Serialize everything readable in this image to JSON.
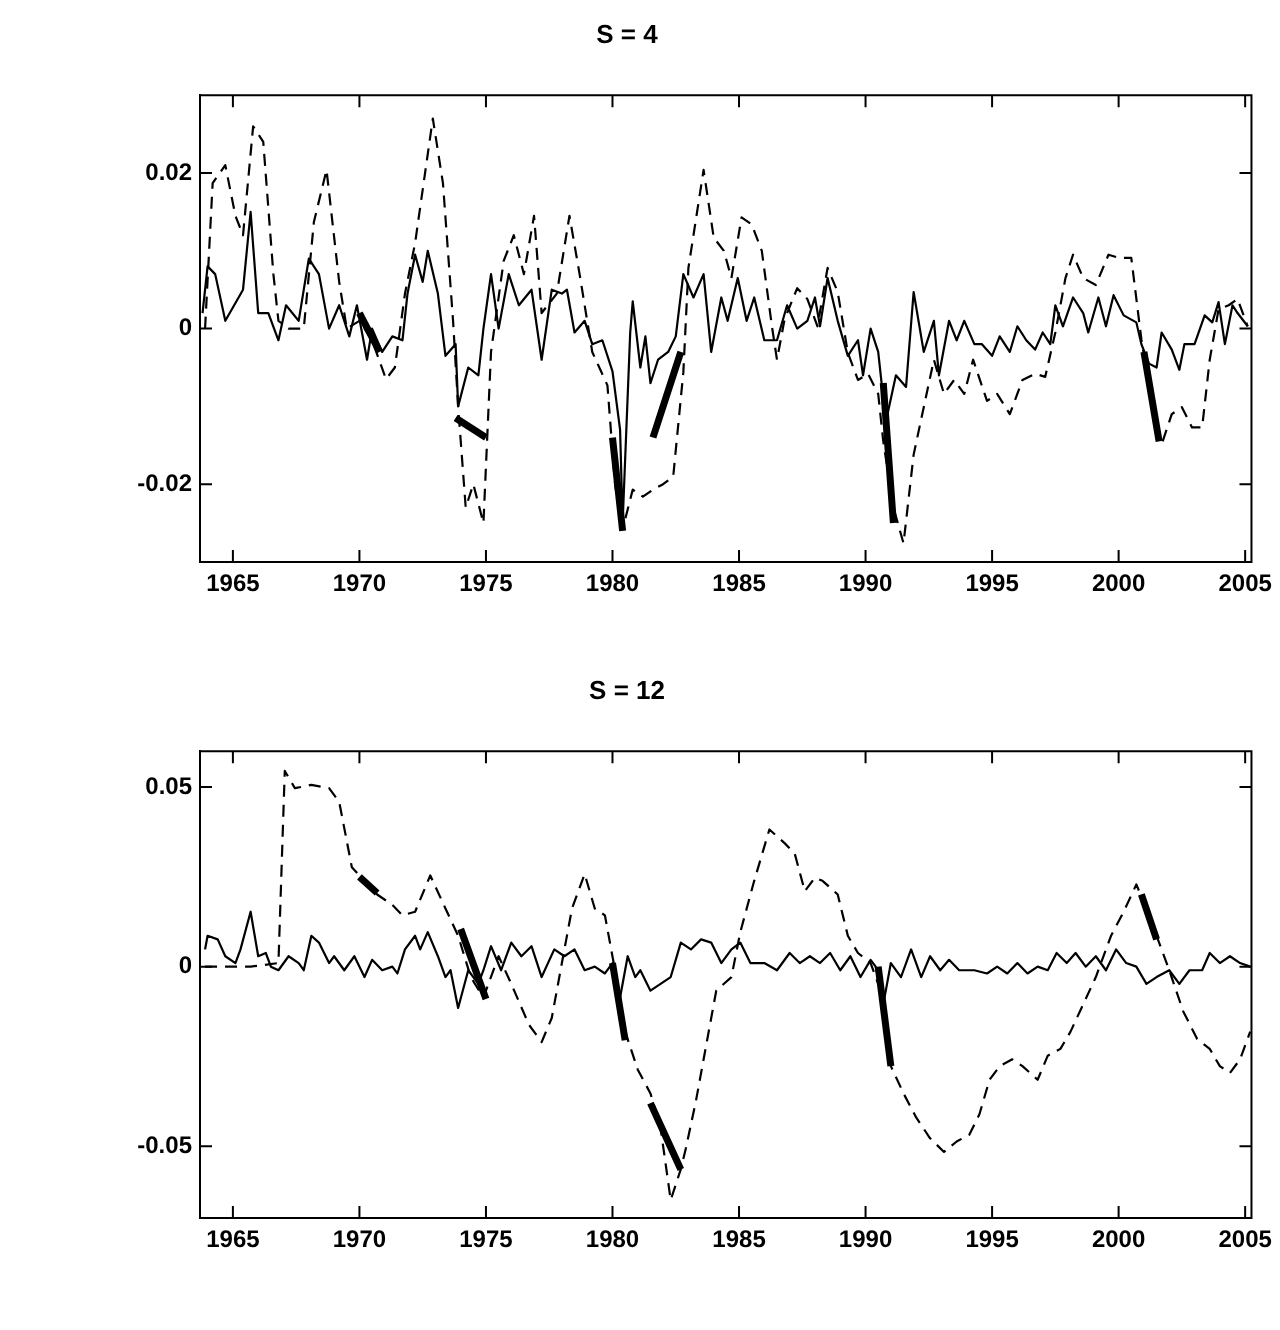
{
  "chart_data": [
    {
      "type": "line",
      "title": "S = 4",
      "xlim": [
        1963.7,
        2005.25
      ],
      "xticks": [
        1965,
        1970,
        1975,
        1980,
        1985,
        1990,
        1995,
        2000,
        2005
      ],
      "ylim": [
        -0.03,
        0.03
      ],
      "yticks": [
        -0.02,
        0,
        0.02
      ],
      "series": [
        {
          "color": "#000000",
          "line_style": "solid",
          "x": [
            1963.8,
            1964.0,
            1964.3,
            1964.7,
            1965.4,
            1965.7,
            1966.0,
            1966.4,
            1966.8,
            1967.1,
            1967.6,
            1968.0,
            1968.4,
            1968.8,
            1969.2,
            1969.6,
            1969.9,
            1970.3,
            1970.5,
            1970.9,
            1971.3,
            1971.7,
            1971.9,
            1972.2,
            1972.5,
            1972.7,
            1973.1,
            1973.4,
            1973.8,
            1973.9,
            1974.3,
            1974.7,
            1974.9,
            1975.2,
            1975.5,
            1975.9,
            1976.3,
            1976.8,
            1977.2,
            1977.6,
            1978.0,
            1978.2,
            1978.5,
            1978.9,
            1979.2,
            1979.6,
            1980.0,
            1980.3,
            1980.4,
            1980.7,
            1980.8,
            1981.1,
            1981.3,
            1981.5,
            1981.8,
            1982.2,
            1982.5,
            1982.8,
            1983.2,
            1983.6,
            1983.9,
            1984.3,
            1984.55,
            1984.95,
            1985.3,
            1985.6,
            1986.0,
            1986.5,
            1986.9,
            1987.3,
            1987.7,
            1988.0,
            1988.2,
            1988.5,
            1988.9,
            1989.3,
            1989.7,
            1989.9,
            1990.2,
            1990.5,
            1990.8,
            1991.2,
            1991.6,
            1991.9,
            1992.3,
            1992.7,
            1992.9,
            1993.3,
            1993.6,
            1993.9,
            1994.3,
            1994.6,
            1995.0,
            1995.3,
            1995.7,
            1996.0,
            1996.35,
            1996.7,
            1997.0,
            1997.3,
            1997.5,
            1997.8,
            1998.2,
            1998.6,
            1998.8,
            1999.2,
            1999.5,
            1999.8,
            2000.2,
            2000.7,
            2000.9,
            2001.2,
            2001.5,
            2001.7,
            2002.1,
            2002.4,
            2002.6,
            2003.0,
            2003.4,
            2003.7,
            2003.95,
            2004.2,
            2004.5,
            2004.7,
            2005.1
          ],
          "values": [
            0.002,
            0.008,
            0.007,
            0.001,
            0.005,
            0.015,
            0.002,
            0.002,
            -0.0015,
            0.003,
            0.001,
            0.009,
            0.007,
            0,
            0.003,
            -0.001,
            0.003,
            -0.004,
            0,
            -0.003,
            -0.001,
            -0.0015,
            0.0045,
            0.0095,
            0.006,
            0.01,
            0.0045,
            -0.0035,
            -0.002,
            -0.01,
            -0.005,
            -0.006,
            0,
            0.007,
            0,
            0.007,
            0.003,
            0.005,
            -0.004,
            0.005,
            0.0045,
            0.005,
            -0.0005,
            0.001,
            -0.002,
            -0.0015,
            -0.0055,
            -0.013,
            -0.025,
            -0.0005,
            0.0035,
            -0.005,
            -0.001,
            -0.007,
            -0.004,
            -0.003,
            -0.001,
            0.007,
            0.004,
            0.007,
            -0.003,
            0.004,
            0.001,
            0.0065,
            0.001,
            0.004,
            -0.0015,
            -0.0015,
            0.003,
            0,
            0.001,
            0.004,
            0.0003,
            0.0065,
            0.001,
            -0.0035,
            -0.0015,
            -0.006,
            0,
            -0.003,
            -0.012,
            -0.006,
            -0.0075,
            0.0047,
            -0.003,
            0.001,
            -0.006,
            0.001,
            -0.0015,
            0.001,
            -0.002,
            -0.002,
            -0.0035,
            -0.001,
            -0.003,
            0.0003,
            -0.0015,
            -0.0027,
            -0.0005,
            -0.002,
            0.003,
            0.0003,
            0.004,
            0.002,
            -0.0005,
            0.004,
            0.0003,
            0.0043,
            0.0017,
            0.0008,
            -0.002,
            -0.0045,
            -0.005,
            -0.0005,
            -0.0027,
            -0.0053,
            -0.002,
            -0.002,
            0.0017,
            0.0008,
            0.0034,
            -0.002,
            0.003,
            0.002,
            0.0003
          ]
        },
        {
          "color": "#000000",
          "line_style": "dashed",
          "x": [
            1963.9,
            1964.2,
            1964.7,
            1965.1,
            1965.4,
            1965.8,
            1966.2,
            1966.6,
            1966.8,
            1967.2,
            1967.8,
            1968.2,
            1968.7,
            1969.2,
            1969.5,
            1970.0,
            1970.5,
            1971.05,
            1971.4,
            1971.8,
            1972.2,
            1972.9,
            1973.3,
            1973.7,
            1973.9,
            1974.2,
            1974.5,
            1974.9,
            1975.2,
            1975.7,
            1976.1,
            1976.5,
            1976.9,
            1977.2,
            1977.8,
            1978.3,
            1978.7,
            1979.2,
            1979.8,
            1980.1,
            1980.4,
            1980.8,
            1981.2,
            1981.6,
            1982.0,
            1982.4,
            1982.8,
            1983.0,
            1983.6,
            1984.0,
            1984.4,
            1984.7,
            1985.1,
            1985.5,
            1985.9,
            1986.3,
            1986.5,
            1986.8,
            1987.3,
            1987.7,
            1988.1,
            1988.5,
            1988.9,
            1989.3,
            1989.7,
            1990.1,
            1990.5,
            1990.7,
            1991.1,
            1991.5,
            1991.9,
            1992.3,
            1992.7,
            1993.1,
            1993.5,
            1993.9,
            1994.25,
            1994.8,
            1995.2,
            1995.7,
            1996.2,
            1996.7,
            1997.1,
            1997.5,
            1997.9,
            1998.2,
            1998.6,
            1999.1,
            1999.6,
            2000.0,
            2000.5,
            2000.9,
            2001.3,
            2001.7,
            2002.1,
            2002.5,
            2002.9,
            2003.3,
            2003.6,
            2003.95,
            2004.35,
            2004.7,
            2005.1
          ],
          "values": [
            0,
            0.0187,
            0.021,
            0.0145,
            0.012,
            0.026,
            0.024,
            0.007,
            0.001,
            0,
            0,
            0.0137,
            0.0204,
            0.006,
            0,
            0.001,
            -0.0015,
            -0.0065,
            -0.005,
            0.0045,
            0.011,
            0.027,
            0.0187,
            0.001,
            -0.01,
            -0.023,
            -0.02,
            -0.025,
            -0.003,
            0.0087,
            0.012,
            0.007,
            0.0145,
            0.002,
            0.0045,
            0.0145,
            0.007,
            -0.003,
            -0.0073,
            -0.02,
            -0.0258,
            -0.0207,
            -0.0216,
            -0.0207,
            -0.02,
            -0.019,
            -0.0056,
            0.0078,
            0.0204,
            0.0117,
            0.01,
            0.0065,
            0.0143,
            0.0134,
            0.01,
            0.0003,
            -0.004,
            0.0012,
            0.0052,
            0.0038,
            0.0003,
            0.0078,
            0.0047,
            -0.0031,
            -0.0066,
            -0.0058,
            -0.0084,
            -0.0145,
            -0.023,
            -0.0276,
            -0.0162,
            -0.0101,
            -0.004,
            -0.0084,
            -0.0066,
            -0.0084,
            -0.004,
            -0.0093,
            -0.0084,
            -0.011,
            -0.0066,
            -0.0058,
            -0.0062,
            -0.0005,
            0.0065,
            0.0095,
            0.0065,
            0.0056,
            0.0095,
            0.0091,
            0.0091,
            -0.0014,
            -0.0093,
            -0.0149,
            -0.011,
            -0.0101,
            -0.0127,
            -0.0127,
            -0.004,
            0.0025,
            0.003,
            0.0038,
            0.0003
          ]
        },
        {
          "color": "#000000",
          "line_style": "solid",
          "x": [
            1970.0,
            1970.8,
            1972,
            1973.8,
            1975.0,
            1977,
            1980.0,
            1980.4,
            1981,
            1981.6,
            1982.7,
            1986,
            1990.7,
            1991.1,
            1996,
            2001.0,
            2001.6
          ],
          "values": [
            0.002,
            -0.003,
            null,
            -0.0115,
            -0.014,
            null,
            -0.014,
            -0.026,
            null,
            -0.014,
            -0.003,
            null,
            -0.007,
            -0.025,
            null,
            -0.003,
            -0.0145
          ]
        }
      ]
    },
    {
      "type": "line",
      "title": "S = 12",
      "xlim": [
        1963.7,
        2005.25
      ],
      "xticks": [
        1965,
        1970,
        1975,
        1980,
        1985,
        1990,
        1995,
        2000,
        2005
      ],
      "ylim": [
        -0.07,
        0.06
      ],
      "yticks": [
        -0.05,
        0,
        0.05
      ],
      "series": [
        {
          "color": "#000000",
          "line_style": "solid",
          "x": [
            1963.9,
            1964.0,
            1964.4,
            1964.7,
            1965.1,
            1965.3,
            1965.7,
            1966.0,
            1966.3,
            1966.5,
            1966.8,
            1967.2,
            1967.6,
            1967.8,
            1968.1,
            1968.4,
            1968.8,
            1969.0,
            1969.4,
            1969.8,
            1970.2,
            1970.5,
            1970.9,
            1971.3,
            1971.5,
            1971.8,
            1972.2,
            1972.4,
            1972.7,
            1973.1,
            1973.4,
            1973.6,
            1973.9,
            1974.3,
            1974.7,
            1974.9,
            1975.2,
            1975.6,
            1976.0,
            1976.4,
            1976.8,
            1977.2,
            1977.7,
            1978.1,
            1978.5,
            1978.9,
            1979.3,
            1979.7,
            1980.0,
            1980.3,
            1980.6,
            1980.9,
            1981.1,
            1981.5,
            1981.9,
            1982.3,
            1982.7,
            1983.1,
            1983.5,
            1983.9,
            1984.3,
            1984.7,
            1985.05,
            1985.45,
            1986.0,
            1986.5,
            1987.0,
            1987.4,
            1987.8,
            1988.2,
            1988.6,
            1989.0,
            1989.4,
            1989.8,
            1990.2,
            1990.4,
            1990.7,
            1991.0,
            1991.4,
            1991.8,
            1992.2,
            1992.55,
            1992.95,
            1993.3,
            1993.7,
            1994.3,
            1994.8,
            1995.2,
            1995.6,
            1996.0,
            1996.4,
            1996.8,
            1997.2,
            1997.55,
            1997.95,
            1998.3,
            1998.7,
            1999.1,
            1999.5,
            1999.9,
            2000.3,
            2000.7,
            2001.1,
            2001.5,
            2002.0,
            2002.4,
            2002.8,
            2003.3,
            2003.6,
            2004.0,
            2004.4,
            2004.8,
            2005.2
          ],
          "values": [
            0.0048,
            0.0086,
            0.0076,
            0.0029,
            0.001,
            0.0048,
            0.0153,
            0.0029,
            0.0038,
            0,
            -0.001,
            0.0029,
            0.001,
            -0.001,
            0.0086,
            0.0067,
            0.001,
            0.0029,
            -0.001,
            0.0029,
            -0.0029,
            0.0019,
            -0.001,
            0,
            -0.0019,
            0.0048,
            0.0086,
            0.0048,
            0.0096,
            0.0029,
            -0.0029,
            -0.001,
            -0.0115,
            -0.001,
            -0.0048,
            -0.001,
            0.0057,
            -0.001,
            0.0067,
            0.0029,
            0.0057,
            -0.0029,
            0.0048,
            0.0029,
            0.0048,
            -0.001,
            0,
            -0.0019,
            0.001,
            -0.0086,
            0.0029,
            -0.0029,
            -0.001,
            -0.0067,
            -0.0048,
            -0.0029,
            0.0067,
            0.0048,
            0.0076,
            0.0067,
            0.001,
            0.0048,
            0.0067,
            0.001,
            0.001,
            -0.001,
            0.0038,
            0.001,
            0.0029,
            0.001,
            0.0038,
            -0.001,
            0.0029,
            -0.0029,
            0.0019,
            0,
            -0.0105,
            0.001,
            -0.0029,
            0.0048,
            -0.0029,
            0.0029,
            -0.001,
            0.0019,
            -0.001,
            -0.001,
            -0.0019,
            0,
            -0.0019,
            0.001,
            -0.0019,
            0,
            -0.001,
            0.0038,
            0.001,
            0.0038,
            0,
            0.0029,
            -0.001,
            0.0048,
            0.001,
            0,
            -0.0048,
            -0.0029,
            -0.001,
            -0.0048,
            -0.001,
            -0.001,
            0.0038,
            0.001,
            0.0029,
            0.001,
            0
          ]
        },
        {
          "color": "#000000",
          "line_style": "dashed",
          "x": [
            1963.9,
            1965.7,
            1966.8,
            1967.05,
            1967.45,
            1968.1,
            1968.8,
            1969.2,
            1969.7,
            1970.2,
            1970.7,
            1971.3,
            1971.7,
            1972.2,
            1972.8,
            1973.4,
            1973.9,
            1974.4,
            1974.9,
            1975.5,
            1976.0,
            1976.7,
            1977.2,
            1977.6,
            1978.0,
            1978.4,
            1978.9,
            1979.3,
            1979.7,
            1980.1,
            1980.5,
            1981.0,
            1981.5,
            1981.9,
            1982.3,
            1982.7,
            1982.9,
            1983.3,
            1983.7,
            1984.1,
            1984.7,
            1985.05,
            1985.6,
            1986.2,
            1986.8,
            1987.2,
            1987.6,
            1988.0,
            1988.3,
            1988.9,
            1989.3,
            1989.7,
            1990.2,
            1990.6,
            1991.0,
            1991.5,
            1992.0,
            1992.55,
            1993.1,
            1993.6,
            1994.1,
            1994.5,
            1994.9,
            1995.3,
            1995.8,
            1996.2,
            1996.8,
            1997.2,
            1997.7,
            1998.1,
            1998.6,
            1999.1,
            1999.7,
            2000.2,
            2000.7,
            2001.1,
            2001.5,
            2002.0,
            2002.55,
            2003.1,
            2003.6,
            2004.0,
            2004.4,
            2004.8,
            2005.2
          ],
          "values": [
            0,
            0,
            0.001,
            0.0545,
            0.0497,
            0.0506,
            0.0497,
            0.0459,
            0.0277,
            0.0239,
            0.0201,
            0.0172,
            0.0143,
            0.0153,
            0.0254,
            0.0162,
            0.0086,
            -0.0029,
            -0.0086,
            0.0029,
            -0.0048,
            -0.0162,
            -0.021,
            -0.0143,
            0.001,
            0.0162,
            0.0258,
            0.0162,
            0.0143,
            -0.001,
            -0.0181,
            -0.0287,
            -0.0353,
            -0.0449,
            -0.065,
            -0.0564,
            -0.0506,
            -0.0373,
            -0.022,
            -0.0067,
            -0.0029,
            0.0096,
            0.0239,
            0.0382,
            0.0344,
            0.0315,
            0.021,
            0.0248,
            0.0239,
            0.0201,
            0.0086,
            0.0038,
            0.001,
            -0.0067,
            -0.0277,
            -0.0353,
            -0.042,
            -0.0478,
            -0.0516,
            -0.0487,
            -0.0468,
            -0.0411,
            -0.0315,
            -0.0277,
            -0.0258,
            -0.0277,
            -0.0315,
            -0.0248,
            -0.0229,
            -0.0181,
            -0.0105,
            -0.0029,
            0.0086,
            0.0153,
            0.0229,
            0.0162,
            0.0086,
            -0.001,
            -0.0124,
            -0.0201,
            -0.0229,
            -0.0277,
            -0.0296,
            -0.0258,
            -0.0181
          ]
        },
        {
          "color": "#000000",
          "line_style": "solid",
          "x": [
            1970.0,
            1970.7,
            1972,
            1974.0,
            1975.0,
            1977,
            1980.0,
            1980.5,
            1981,
            1981.5,
            1982.7,
            1986,
            1990.5,
            1991.0,
            1996,
            2000.9,
            2001.5
          ],
          "values": [
            0.025,
            0.0205,
            null,
            0.0105,
            -0.009,
            null,
            0.001,
            -0.0205,
            null,
            -0.038,
            -0.0565,
            null,
            0,
            -0.0277,
            null,
            0.0201,
            0.0076
          ]
        }
      ]
    }
  ]
}
